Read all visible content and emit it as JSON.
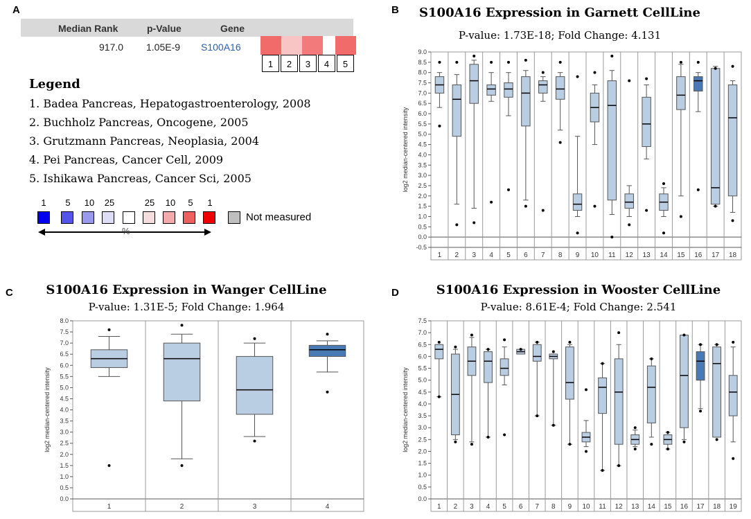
{
  "panel_letters": {
    "a": "A",
    "b": "B",
    "c": "C",
    "d": "D"
  },
  "table": {
    "headers": {
      "median_rank": "Median Rank",
      "p_value": "p-Value",
      "gene": "Gene"
    },
    "row": {
      "median_rank": "917.0",
      "p_value": "1.05E-9",
      "gene": "S100A16"
    },
    "heat_colors": [
      "#f26b6b",
      "#f9c4c4",
      "#f37a7a",
      "#ffffff",
      "#f26b6b"
    ],
    "columns": [
      "1",
      "2",
      "3",
      "4",
      "5"
    ]
  },
  "legend": {
    "title": "Legend",
    "items": [
      "1. Badea Pancreas, Hepatogastroenterology, 2008",
      "2. Buchholz Pancreas, Oncogene, 2005",
      "3. Grutzmann Pancreas, Neoplasia, 2004",
      "4. Pei Pancreas, Cancer Cell, 2009",
      "5. Ishikawa Pancreas, Cancer Sci, 2005"
    ]
  },
  "scale": {
    "labels": [
      "1",
      "5",
      "10",
      "25",
      "",
      "25",
      "10",
      "5",
      "1"
    ],
    "colors": [
      "#0000ee",
      "#5555ee",
      "#9999ee",
      "#ddddf6",
      "#ffffff",
      "#f6dddd",
      "#f2aaaa",
      "#ee6060",
      "#ee0000"
    ],
    "not_measured": "Not measured",
    "not_measured_color": "#bfbfbf",
    "percent": "%"
  },
  "chart_data": [
    {
      "id": "B",
      "type": "boxplot",
      "title": "S100A16 Expression in Garnett CellLine",
      "subtitle": "P-value: 1.73E-18; Fold Change: 4.131",
      "ylabel": "log2 median-centered intensity",
      "ylim": [
        -0.5,
        9.0
      ],
      "yticks": [
        -0.5,
        0.0,
        0.5,
        1.0,
        1.5,
        2.0,
        2.5,
        3.0,
        3.5,
        4.0,
        4.5,
        5.0,
        5.5,
        6.0,
        6.5,
        7.0,
        7.5,
        8.0,
        8.5,
        9.0
      ],
      "highlight": [
        16
      ],
      "categories": [
        "1",
        "2",
        "3",
        "4",
        "5",
        "6",
        "7",
        "8",
        "9",
        "10",
        "11",
        "12",
        "13",
        "14",
        "15",
        "16",
        "17",
        "18"
      ],
      "boxes": [
        {
          "min": 6.3,
          "q1": 7.0,
          "median": 7.4,
          "q3": 7.8,
          "max": 8.0,
          "outliers": [
            8.5,
            5.4
          ]
        },
        {
          "min": 1.6,
          "q1": 4.9,
          "median": 6.7,
          "q3": 7.4,
          "max": 7.9,
          "outliers": [
            8.5,
            0.6
          ]
        },
        {
          "min": 1.4,
          "q1": 6.5,
          "median": 7.6,
          "q3": 8.4,
          "max": 8.6,
          "outliers": [
            8.8,
            0.7
          ]
        },
        {
          "min": 6.6,
          "q1": 6.9,
          "median": 7.2,
          "q3": 7.4,
          "max": 8.0,
          "outliers": [
            8.5,
            1.7
          ]
        },
        {
          "min": 5.9,
          "q1": 6.8,
          "median": 7.2,
          "q3": 7.5,
          "max": 8.0,
          "outliers": [
            8.5,
            2.3
          ]
        },
        {
          "min": 1.8,
          "q1": 5.4,
          "median": 7.0,
          "q3": 7.8,
          "max": 8.1,
          "outliers": [
            8.6,
            1.5
          ]
        },
        {
          "min": 6.6,
          "q1": 7.0,
          "median": 7.4,
          "q3": 7.6,
          "max": 7.8,
          "outliers": [
            8.0,
            1.3
          ]
        },
        {
          "min": 5.2,
          "q1": 6.7,
          "median": 7.2,
          "q3": 7.8,
          "max": 8.0,
          "outliers": [
            8.5,
            4.6
          ]
        },
        {
          "min": 1.0,
          "q1": 1.3,
          "median": 1.6,
          "q3": 2.1,
          "max": 4.9,
          "outliers": [
            7.8,
            0.2
          ]
        },
        {
          "min": 4.5,
          "q1": 5.6,
          "median": 6.3,
          "q3": 7.0,
          "max": 7.4,
          "outliers": [
            8.0,
            1.5
          ]
        },
        {
          "min": 1.1,
          "q1": 1.8,
          "median": 6.4,
          "q3": 7.6,
          "max": 8.1,
          "outliers": [
            8.8,
            0.0
          ]
        },
        {
          "min": 1.0,
          "q1": 1.4,
          "median": 1.7,
          "q3": 2.1,
          "max": 2.5,
          "outliers": [
            7.6,
            0.6
          ]
        },
        {
          "min": 3.8,
          "q1": 4.4,
          "median": 5.5,
          "q3": 6.8,
          "max": 7.4,
          "outliers": [
            7.7,
            1.3
          ]
        },
        {
          "min": 1.0,
          "q1": 1.3,
          "median": 1.7,
          "q3": 2.1,
          "max": 2.4,
          "outliers": [
            2.6,
            0.2
          ]
        },
        {
          "min": 2.0,
          "q1": 6.2,
          "median": 6.9,
          "q3": 7.8,
          "max": 8.4,
          "outliers": [
            8.5,
            1.0
          ]
        },
        {
          "min": 6.1,
          "q1": 7.1,
          "median": 7.6,
          "q3": 7.8,
          "max": 8.0,
          "outliers": [
            8.5,
            2.3
          ]
        },
        {
          "min": 1.5,
          "q1": 1.6,
          "median": 2.4,
          "q3": 8.2,
          "max": 8.3,
          "outliers": [
            8.2,
            1.5
          ]
        },
        {
          "min": 1.2,
          "q1": 2.0,
          "median": 5.8,
          "q3": 7.4,
          "max": 7.6,
          "outliers": [
            8.3,
            0.8
          ]
        }
      ]
    },
    {
      "id": "C",
      "type": "boxplot",
      "title": "S100A16 Expression in Wanger CellLine",
      "subtitle": "P-value: 1.31E-5; Fold Change: 1.964",
      "ylabel": "log2 median-centered intensity",
      "ylim": [
        0.0,
        8.0
      ],
      "yticks": [
        0.0,
        0.5,
        1.0,
        1.5,
        2.0,
        2.5,
        3.0,
        3.5,
        4.0,
        4.5,
        5.0,
        5.5,
        6.0,
        6.5,
        7.0,
        7.5,
        8.0
      ],
      "highlight": [
        4
      ],
      "categories": [
        "1",
        "2",
        "3",
        "4"
      ],
      "boxes": [
        {
          "min": 5.5,
          "q1": 5.9,
          "median": 6.3,
          "q3": 6.7,
          "max": 7.3,
          "outliers": [
            7.6,
            1.5
          ]
        },
        {
          "min": 1.8,
          "q1": 4.4,
          "median": 6.3,
          "q3": 7.0,
          "max": 7.4,
          "outliers": [
            7.8,
            1.5
          ]
        },
        {
          "min": 2.8,
          "q1": 3.8,
          "median": 4.9,
          "q3": 6.4,
          "max": 7.0,
          "outliers": [
            7.2,
            2.6
          ]
        },
        {
          "min": 5.7,
          "q1": 6.4,
          "median": 6.7,
          "q3": 6.9,
          "max": 7.1,
          "outliers": [
            7.4,
            4.8
          ]
        }
      ]
    },
    {
      "id": "D",
      "type": "boxplot",
      "title": "S100A16 Expression in Wooster CellLine",
      "subtitle": "P-value: 8.61E-4; Fold Change: 2.541",
      "ylabel": "log2 median-centered intensity",
      "ylim": [
        0.0,
        7.5
      ],
      "yticks": [
        0.0,
        0.5,
        1.0,
        1.5,
        2.0,
        2.5,
        3.0,
        3.5,
        4.0,
        4.5,
        5.0,
        5.5,
        6.0,
        6.5,
        7.0,
        7.5
      ],
      "highlight": [
        17
      ],
      "categories": [
        "1",
        "2",
        "3",
        "4",
        "5",
        "6",
        "7",
        "8",
        "9",
        "10",
        "11",
        "12",
        "13",
        "14",
        "15",
        "16",
        "17",
        "18",
        "19"
      ],
      "boxes": [
        {
          "min": 4.3,
          "q1": 5.9,
          "median": 6.3,
          "q3": 6.5,
          "max": 6.5,
          "outliers": [
            6.6,
            4.3
          ]
        },
        {
          "min": 2.5,
          "q1": 2.7,
          "median": 4.4,
          "q3": 6.1,
          "max": 6.3,
          "outliers": [
            6.4,
            2.4
          ]
        },
        {
          "min": 2.4,
          "q1": 5.2,
          "median": 5.8,
          "q3": 6.4,
          "max": 6.8,
          "outliers": [
            6.9,
            2.3
          ]
        },
        {
          "min": 2.6,
          "q1": 4.9,
          "median": 5.8,
          "q3": 6.2,
          "max": 6.3,
          "outliers": [
            6.3,
            2.6
          ]
        },
        {
          "min": 4.8,
          "q1": 5.2,
          "median": 5.5,
          "q3": 5.9,
          "max": 6.4,
          "outliers": [
            6.7,
            2.7
          ]
        },
        {
          "min": 6.1,
          "q1": 6.1,
          "median": 6.2,
          "q3": 6.3,
          "max": 6.3,
          "outliers": [
            6.3
          ]
        },
        {
          "min": 3.5,
          "q1": 5.8,
          "median": 6.0,
          "q3": 6.5,
          "max": 6.6,
          "outliers": [
            6.6,
            3.5
          ]
        },
        {
          "min": 3.1,
          "q1": 5.9,
          "median": 6.0,
          "q3": 6.1,
          "max": 6.1,
          "outliers": [
            6.2,
            3.1
          ]
        },
        {
          "min": 2.3,
          "q1": 4.2,
          "median": 4.9,
          "q3": 6.4,
          "max": 6.5,
          "outliers": [
            6.6,
            2.3
          ]
        },
        {
          "min": 2.2,
          "q1": 2.4,
          "median": 2.6,
          "q3": 2.8,
          "max": 3.3,
          "outliers": [
            4.6,
            2.0
          ]
        },
        {
          "min": 1.2,
          "q1": 3.6,
          "median": 4.7,
          "q3": 5.1,
          "max": 5.7,
          "outliers": [
            5.7,
            1.2
          ]
        },
        {
          "min": 1.4,
          "q1": 2.3,
          "median": 4.5,
          "q3": 5.9,
          "max": 6.5,
          "outliers": [
            7.0,
            1.4
          ]
        },
        {
          "min": 2.2,
          "q1": 2.3,
          "median": 2.5,
          "q3": 2.7,
          "max": 2.9,
          "outliers": [
            3.0,
            2.1
          ]
        },
        {
          "min": 2.6,
          "q1": 3.2,
          "median": 4.7,
          "q3": 5.6,
          "max": 5.9,
          "outliers": [
            5.9,
            2.3
          ]
        },
        {
          "min": 2.1,
          "q1": 2.3,
          "median": 2.5,
          "q3": 2.7,
          "max": 2.8,
          "outliers": [
            2.8,
            2.1
          ]
        },
        {
          "min": 2.5,
          "q1": 3.0,
          "median": 5.2,
          "q3": 6.9,
          "max": 6.9,
          "outliers": [
            6.9,
            2.4
          ]
        },
        {
          "min": 3.8,
          "q1": 5.0,
          "median": 5.8,
          "q3": 6.2,
          "max": 6.5,
          "outliers": [
            6.5,
            3.7
          ]
        },
        {
          "min": 2.6,
          "q1": 2.6,
          "median": 5.7,
          "q3": 6.4,
          "max": 6.5,
          "outliers": [
            6.5,
            2.5
          ]
        },
        {
          "min": 2.4,
          "q1": 3.5,
          "median": 4.5,
          "q3": 5.2,
          "max": 6.4,
          "outliers": [
            6.6,
            1.7
          ]
        }
      ]
    }
  ]
}
